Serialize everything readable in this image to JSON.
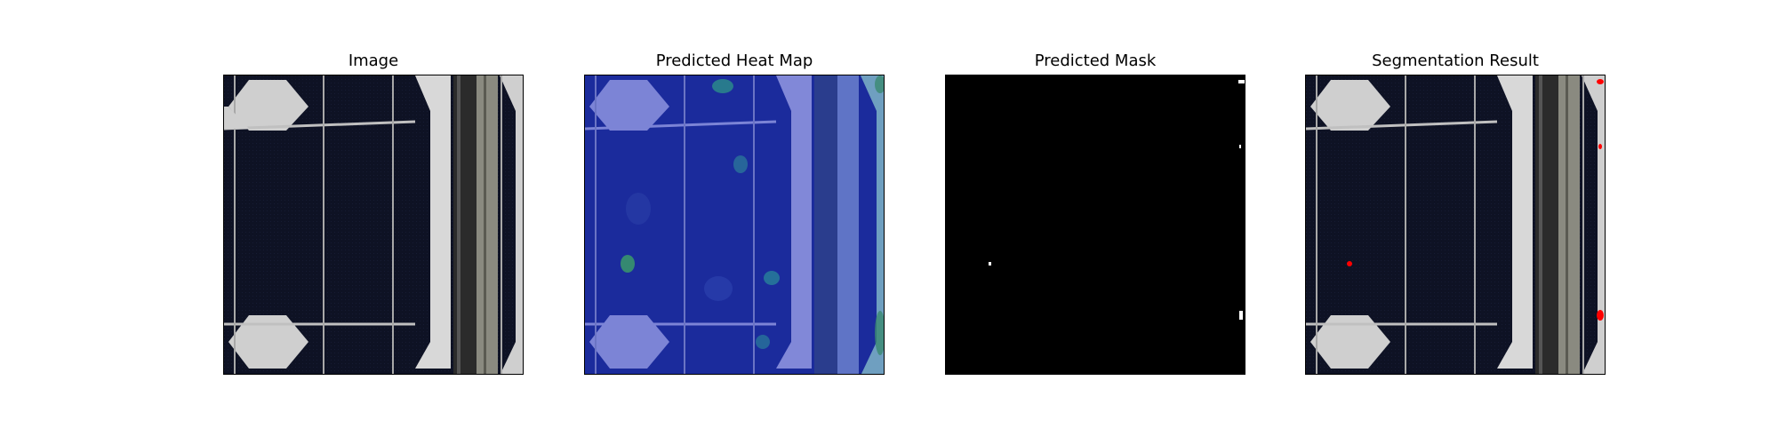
{
  "figure": {
    "panels": [
      {
        "title": "Image"
      },
      {
        "title": "Predicted Heat Map"
      },
      {
        "title": "Predicted Mask"
      },
      {
        "title": "Segmentation Result"
      }
    ]
  },
  "colors": {
    "cell_dark": "#0d1020",
    "cell_light": "#c9c9c9",
    "frame_dark": "#2a2a2a",
    "heat_base": "#1a2a9a",
    "heat_light": "#7f86d8",
    "heat_hot": "#2c8f8a",
    "mask_bg": "#000000",
    "mask_fg": "#ffffff",
    "defect": "#ff0000"
  }
}
